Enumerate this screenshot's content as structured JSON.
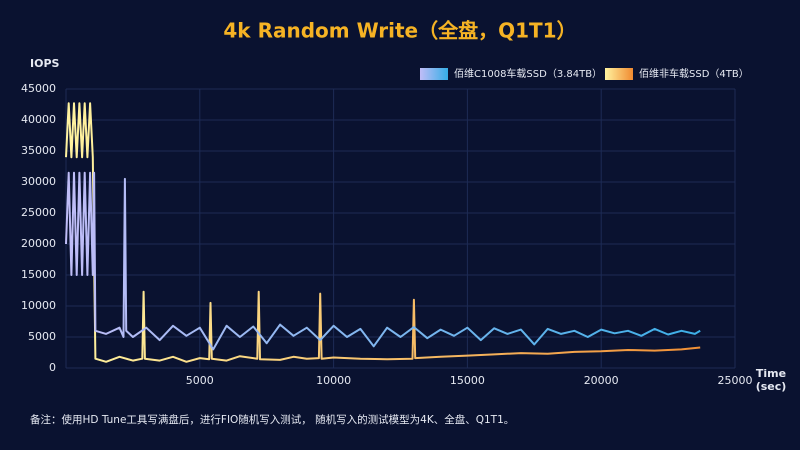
{
  "chart_data": {
    "type": "line",
    "title": "4k Random Write（全盘，Q1T1）",
    "y_label": "IOPS",
    "x_label_lines": [
      "Time",
      "(sec)"
    ],
    "footnote": "备注：使用HD Tune工具写满盘后，进行FIO随机写入测试， 随机写入的测试模型为4K、全盘、Q1T1。",
    "xlim": [
      0,
      25000
    ],
    "xticks": [
      5000,
      10000,
      15000,
      20000,
      25000
    ],
    "ylim": [
      0,
      45000
    ],
    "yticks": [
      0,
      5000,
      10000,
      15000,
      20000,
      25000,
      30000,
      35000,
      40000,
      45000
    ],
    "grid": true,
    "legend": "top-right",
    "series": [
      {
        "name": "佰维非车载SSD（4TB）",
        "color": "#fff3a0",
        "color_end": "#f08a30",
        "x": [
          0,
          100,
          200,
          300,
          400,
          500,
          600,
          700,
          800,
          900,
          1000,
          1100,
          1500,
          2000,
          2500,
          2850,
          2900,
          2950,
          3500,
          4000,
          4500,
          5000,
          5350,
          5400,
          5450,
          6000,
          6500,
          7150,
          7200,
          7250,
          8000,
          8500,
          9000,
          9450,
          9500,
          9550,
          10000,
          11000,
          12000,
          12950,
          13000,
          13050,
          14000,
          15000,
          16000,
          17000,
          18000,
          19000,
          20000,
          21000,
          22000,
          23000,
          23700
        ],
        "values": [
          34000,
          42700,
          34000,
          42700,
          34000,
          42700,
          34000,
          42700,
          34000,
          42700,
          34000,
          1500,
          1000,
          1800,
          1200,
          1500,
          12300,
          1500,
          1200,
          1800,
          1000,
          1600,
          1400,
          10500,
          1500,
          1200,
          1900,
          1500,
          12300,
          1400,
          1300,
          1800,
          1500,
          1600,
          12000,
          1500,
          1700,
          1500,
          1400,
          1500,
          11000,
          1600,
          1800,
          2000,
          2200,
          2400,
          2300,
          2600,
          2700,
          2900,
          2800,
          3000,
          3300
        ]
      },
      {
        "name": "佰维C1008车载SSD（3.84TB）",
        "color": "#c0bdf7",
        "color_end": "#35aee6",
        "x": [
          0,
          100,
          200,
          300,
          400,
          500,
          600,
          700,
          800,
          900,
          1000,
          1050,
          1100,
          1500,
          2000,
          2150,
          2200,
          2250,
          2500,
          3000,
          3500,
          4000,
          4500,
          5000,
          5500,
          6000,
          6500,
          7000,
          7500,
          8000,
          8500,
          9000,
          9500,
          10000,
          10500,
          11000,
          11500,
          12000,
          12500,
          13000,
          13500,
          14000,
          14500,
          15000,
          15500,
          16000,
          16500,
          17000,
          17500,
          18000,
          18500,
          19000,
          19500,
          20000,
          20500,
          21000,
          21500,
          22000,
          22500,
          23000,
          23500,
          23700
        ],
        "values": [
          20000,
          31500,
          15000,
          31500,
          15000,
          31500,
          15000,
          31500,
          15000,
          31500,
          15000,
          31500,
          6000,
          5500,
          6500,
          5000,
          30500,
          6000,
          5000,
          6500,
          4500,
          6800,
          5200,
          6500,
          3000,
          6800,
          5000,
          6700,
          4000,
          7000,
          5200,
          6500,
          4500,
          6800,
          5000,
          6300,
          3500,
          6500,
          5000,
          6600,
          4800,
          6200,
          5200,
          6500,
          4500,
          6400,
          5500,
          6200,
          3800,
          6300,
          5500,
          6000,
          5000,
          6200,
          5600,
          6000,
          5200,
          6300,
          5400,
          6000,
          5500,
          6000
        ]
      }
    ]
  }
}
